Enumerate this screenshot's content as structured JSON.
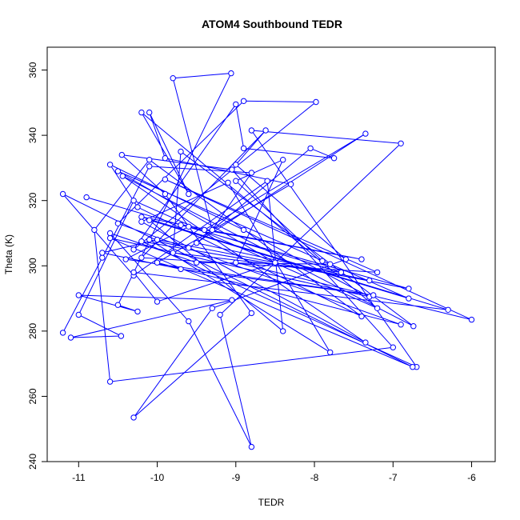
{
  "chart_data": {
    "type": "line",
    "title": "ATOM4 Southbound TEDR",
    "xlabel": "TEDR",
    "ylabel": "Theta (K)",
    "xlim": [
      -11.4,
      -5.7
    ],
    "ylim": [
      240,
      367
    ],
    "xticks": [
      -11,
      -10,
      -9,
      -8,
      -7,
      -6
    ],
    "yticks": [
      240,
      260,
      280,
      300,
      320,
      340,
      360
    ],
    "grid": false,
    "legend": "none",
    "series": [
      {
        "color": "#0000ff",
        "marker": "open-circle",
        "points": [
          [
            -11.2,
            279.5
          ],
          [
            -10.7,
            302.5
          ],
          [
            -10.1,
            330.5
          ],
          [
            -8.8,
            328.5
          ],
          [
            -9.3,
            311.0
          ],
          [
            -9.8,
            357.5
          ],
          [
            -9.06,
            359.0
          ],
          [
            -10.5,
            288.0
          ],
          [
            -10.25,
            286.0
          ],
          [
            -11.0,
            291.0
          ],
          [
            -9.05,
            289.5
          ],
          [
            -11.1,
            278.0
          ],
          [
            -10.46,
            278.5
          ],
          [
            -11.0,
            285.0
          ],
          [
            -10.3,
            320.0
          ],
          [
            -7.2,
            287.0
          ],
          [
            -10.2,
            347.0
          ],
          [
            -9.6,
            322.0
          ],
          [
            -10.1,
            347.0
          ],
          [
            -9.9,
            333.0
          ],
          [
            -8.3,
            325.0
          ],
          [
            -10.0,
            301.0
          ],
          [
            -6.9,
            282.0
          ],
          [
            -10.5,
            313.0
          ],
          [
            -8.9,
            350.5
          ],
          [
            -7.98,
            350.2
          ],
          [
            -10.3,
            305.0
          ],
          [
            -9.0,
            349.5
          ],
          [
            -8.9,
            336.0
          ],
          [
            -7.75,
            333.0
          ],
          [
            -8.05,
            336.0
          ],
          [
            -9.5,
            307.0
          ],
          [
            -7.3,
            295.5
          ],
          [
            -10.2,
            307.5
          ],
          [
            -6.7,
            269.0
          ],
          [
            -8.8,
            341.5
          ],
          [
            -6.9,
            337.5
          ],
          [
            -9.2,
            285.0
          ],
          [
            -8.8,
            244.5
          ],
          [
            -9.6,
            283.0
          ],
          [
            -10.6,
            310.0
          ],
          [
            -9.5,
            301.0
          ],
          [
            -7.8,
            300.5
          ],
          [
            -7.9,
            301.5
          ],
          [
            -9.0,
            326.0
          ],
          [
            -8.4,
            332.5
          ],
          [
            -9.0,
            301.0
          ],
          [
            -6.0,
            283.5
          ],
          [
            -9.9,
            326.5
          ],
          [
            -7.2,
            298.0
          ],
          [
            -10.2,
            302.5
          ],
          [
            -8.62,
            341.5
          ],
          [
            -9.0,
            331.0
          ],
          [
            -7.6,
            302.0
          ],
          [
            -9.3,
            287.0
          ],
          [
            -10.3,
            253.5
          ],
          [
            -8.8,
            285.5
          ],
          [
            -9.9,
            322.0
          ],
          [
            -10.45,
            334.0
          ],
          [
            -9.05,
            329.5
          ],
          [
            -7.0,
            275.0
          ],
          [
            -10.6,
            264.5
          ],
          [
            -10.8,
            311.0
          ],
          [
            -10.1,
            332.5
          ],
          [
            -7.4,
            284.5
          ],
          [
            -10.25,
            318.0
          ],
          [
            -10.6,
            331.0
          ],
          [
            -8.9,
            311.0
          ],
          [
            -7.3,
            290.5
          ],
          [
            -10.6,
            308.5
          ],
          [
            -6.75,
            269.0
          ],
          [
            -11.2,
            322.0
          ],
          [
            -10.3,
            297.0
          ],
          [
            -8.6,
            326.0
          ],
          [
            -8.4,
            280.0
          ],
          [
            -10.1,
            314.0
          ],
          [
            -6.8,
            290.0
          ],
          [
            -10.5,
            329.0
          ],
          [
            -8.5,
            301.0
          ],
          [
            -10.0,
            289.0
          ],
          [
            -10.3,
            298.0
          ],
          [
            -6.3,
            286.5
          ],
          [
            -10.2,
            315.0
          ],
          [
            -7.4,
            302.0
          ],
          [
            -9.4,
            311.0
          ],
          [
            -7.35,
            340.5
          ],
          [
            -9.6,
            305.5
          ],
          [
            -10.1,
            308.0
          ],
          [
            -7.8,
            273.5
          ],
          [
            -9.1,
            325.5
          ],
          [
            -10.2,
            313.5
          ],
          [
            -7.35,
            276.5
          ],
          [
            -10.44,
            327.5
          ],
          [
            -6.74,
            281.5
          ],
          [
            -9.7,
            335.0
          ],
          [
            -9.8,
            304.0
          ],
          [
            -7.66,
            298.0
          ],
          [
            -9.6,
            312.0
          ],
          [
            -10.4,
            302.0
          ],
          [
            -7.25,
            291.0
          ],
          [
            -9.7,
            299.0
          ],
          [
            -10.7,
            304.0
          ],
          [
            -10.0,
            308.0
          ],
          [
            -6.8,
            293.0
          ],
          [
            -9.7,
            312.5
          ],
          [
            -10.9,
            321.0
          ]
        ]
      }
    ]
  }
}
